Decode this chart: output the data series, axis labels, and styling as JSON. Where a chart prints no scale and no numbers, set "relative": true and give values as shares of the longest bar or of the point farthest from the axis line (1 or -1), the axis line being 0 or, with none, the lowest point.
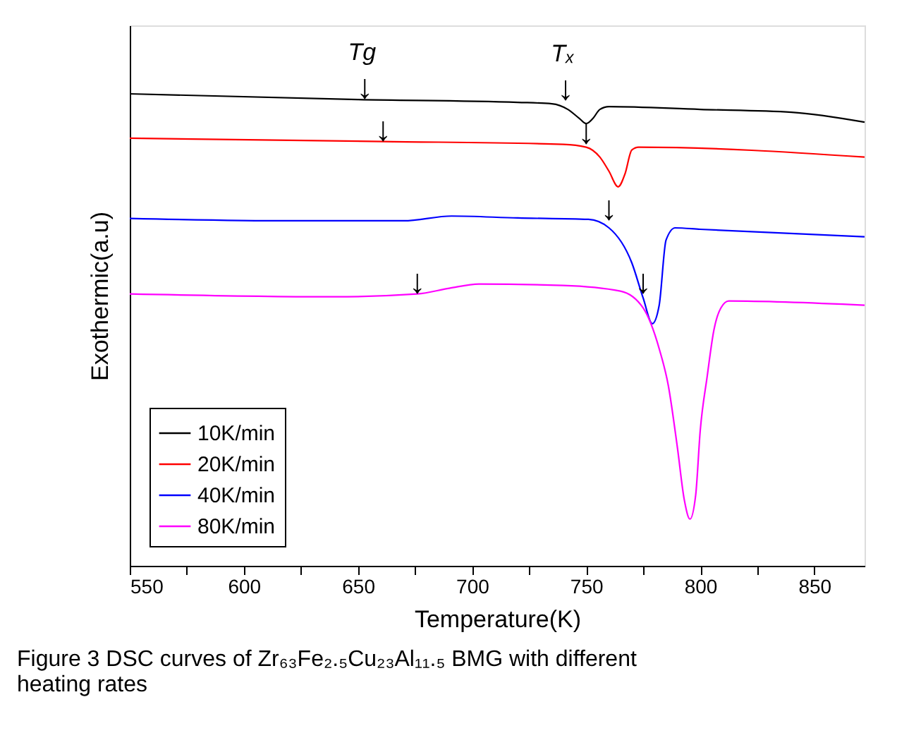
{
  "chart_data": {
    "type": "line",
    "relative": true,
    "xlabel": "Temperature(K)",
    "ylabel": "Exothermic(a.u)",
    "xlim": [
      550,
      872
    ],
    "xticks": [
      550,
      {
        "value": 575,
        "label": null
      },
      600,
      {
        "value": 625,
        "label": null
      },
      650,
      {
        "value": 675,
        "label": null
      },
      700,
      {
        "value": 725,
        "label": null
      },
      750,
      {
        "value": 775,
        "label": null
      },
      800,
      {
        "value": 825,
        "label": null
      },
      850
    ],
    "legend": "bottom left",
    "grid": false,
    "marker": "none",
    "line_style": "solid",
    "series": [
      {
        "name": "10K/min",
        "color": "#000000",
        "x": [
          550,
          650,
          720,
          735,
          742,
          747,
          750,
          753,
          756,
          760,
          800,
          840,
          872
        ],
        "values": [
          1.0,
          0.988,
          0.982,
          0.979,
          0.967,
          0.948,
          0.937,
          0.948,
          0.967,
          0.973,
          0.967,
          0.961,
          0.94
        ]
      },
      {
        "name": "20K/min",
        "color": "#ff0000",
        "x": [
          550,
          661,
          740,
          750,
          756,
          760,
          764,
          767,
          770,
          773,
          872
        ],
        "values": [
          0.906,
          0.899,
          0.893,
          0.887,
          0.866,
          0.836,
          0.803,
          0.83,
          0.881,
          0.887,
          0.866
        ]
      },
      {
        "name": "40K/min",
        "color": "#0000ff",
        "x": [
          550,
          620,
          670,
          691,
          720,
          751,
          760,
          770,
          775,
          779,
          782,
          785,
          789,
          800,
          872
        ],
        "values": [
          0.736,
          0.731,
          0.731,
          0.741,
          0.737,
          0.734,
          0.716,
          0.642,
          0.567,
          0.513,
          0.552,
          0.69,
          0.716,
          0.713,
          0.697
        ]
      },
      {
        "name": "80K/min",
        "color": "#ff00ff",
        "x": [
          550,
          640,
          676,
          690,
          703,
          740,
          765,
          775,
          782,
          786,
          790,
          793,
          795.5,
          798,
          800,
          803,
          806,
          809,
          812.5,
          872
        ],
        "values": [
          0.576,
          0.57,
          0.576,
          0.588,
          0.597,
          0.594,
          0.582,
          0.546,
          0.46,
          0.382,
          0.25,
          0.14,
          0.099,
          0.15,
          0.287,
          0.4,
          0.5,
          0.546,
          0.561,
          0.552
        ]
      }
    ],
    "annotations": [
      "Tg",
      "Tₓ",
      {
        "text": "↓",
        "x": 653,
        "y": 0.988
      },
      {
        "text": "↓",
        "x": 741,
        "y": 0.985
      },
      {
        "text": "↓",
        "x": 661,
        "y": 0.899
      },
      {
        "text": "↓",
        "x": 750,
        "y": 0.893
      },
      {
        "text": "↓",
        "x": 760,
        "y": 0.731
      },
      {
        "text": "↓",
        "x": 676,
        "y": 0.576
      },
      {
        "text": "↓",
        "x": 775,
        "y": 0.576
      },
      "Figure 3  DSC curves of Zr₆₃Fe₂.₅Cu₂₃Al₁₁.₅ BMG with different heating rates"
    ]
  }
}
